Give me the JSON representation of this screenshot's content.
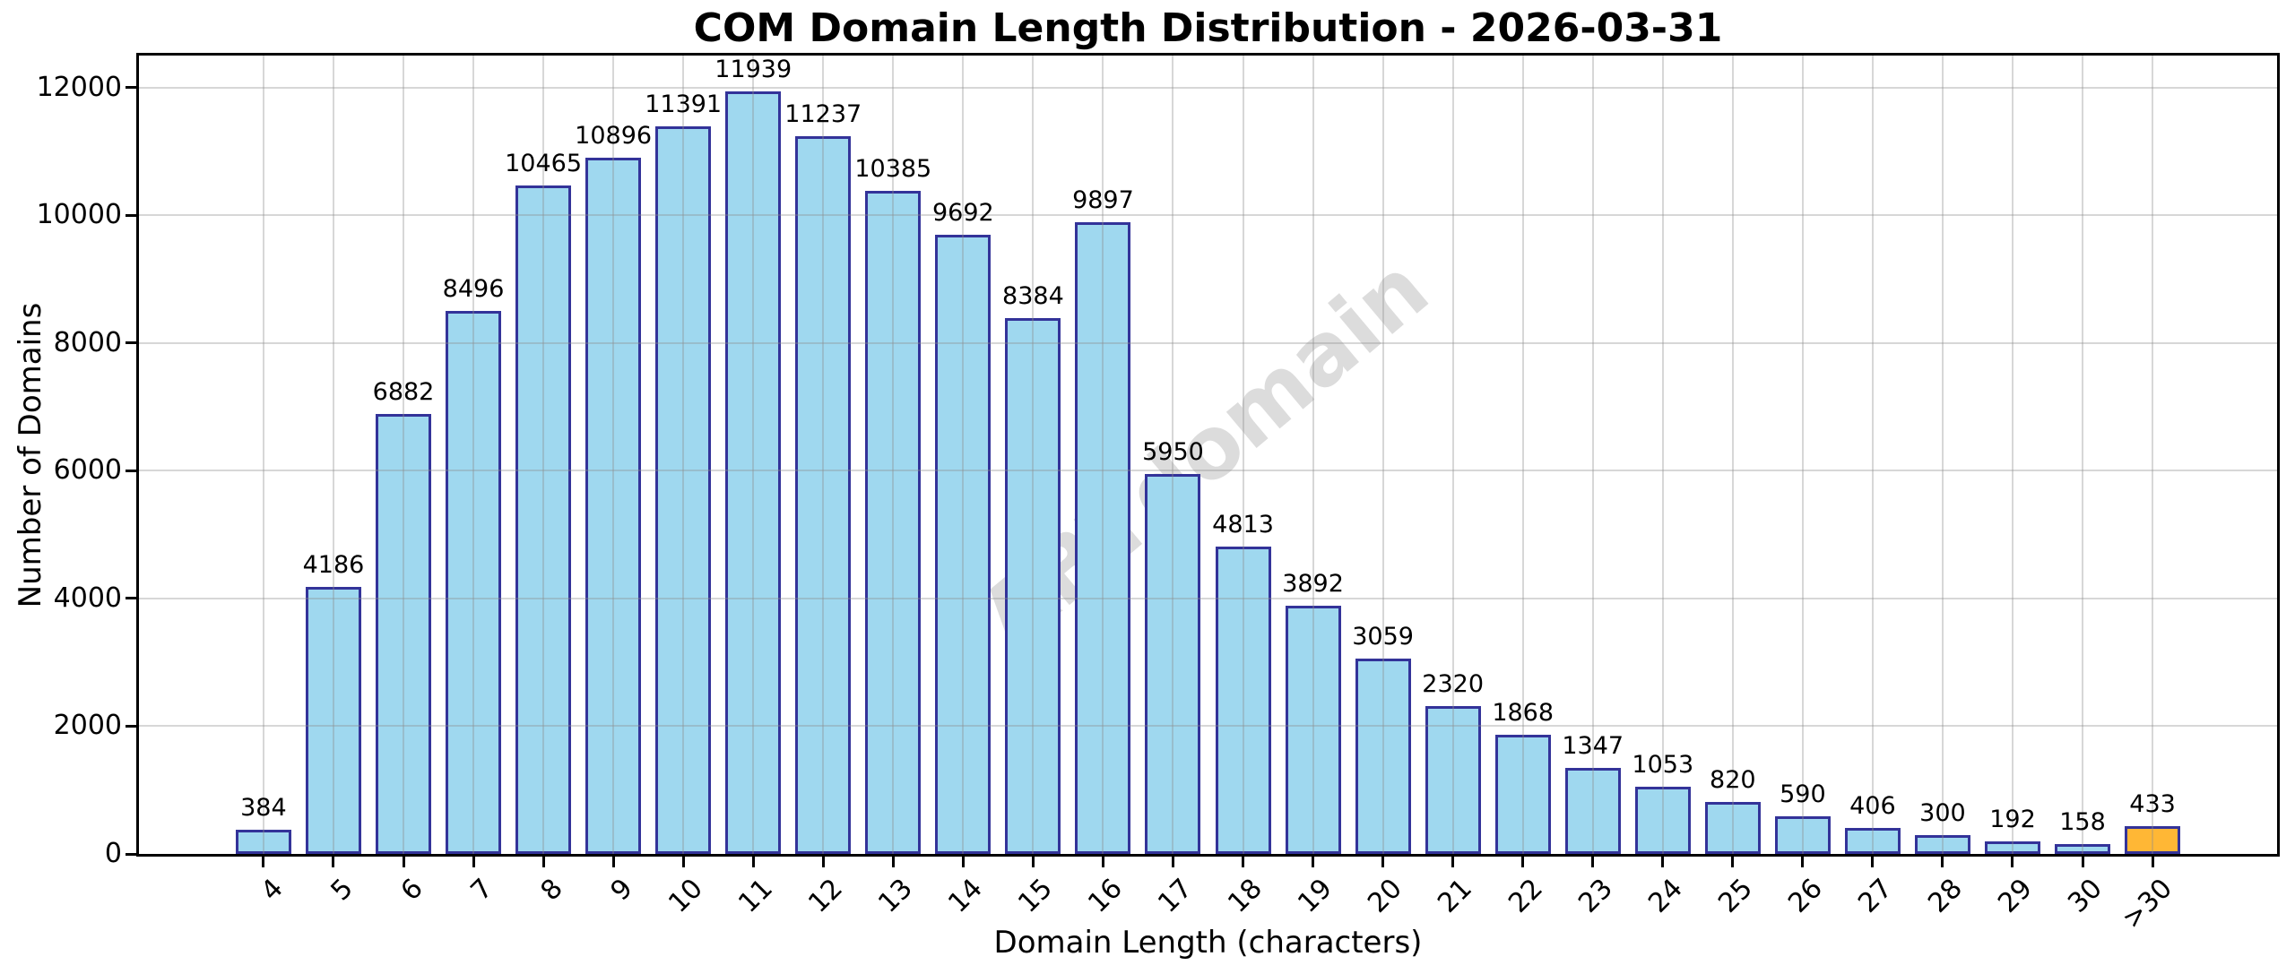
{
  "figure": {
    "background": "#FFFFFF"
  },
  "chart_data": {
    "type": "bar",
    "title": "COM Domain Length Distribution - 2026-03-31",
    "xlabel": "Domain Length (characters)",
    "ylabel": "Number of Domains",
    "categories": [
      "4",
      "5",
      "6",
      "7",
      "8",
      "9",
      "10",
      "11",
      "12",
      "13",
      "14",
      "15",
      "16",
      "17",
      "18",
      "19",
      "20",
      "21",
      "22",
      "23",
      "24",
      "25",
      "26",
      "27",
      "28",
      "29",
      "30",
      ">30"
    ],
    "values": [
      384,
      4186,
      6882,
      8496,
      10465,
      10896,
      11391,
      11939,
      11237,
      10385,
      9692,
      8384,
      9897,
      5950,
      4813,
      3892,
      3059,
      2320,
      1868,
      1347,
      1053,
      820,
      590,
      406,
      300,
      192,
      158,
      433
    ],
    "ylim": [
      0,
      12500
    ],
    "yticks": [
      0,
      2000,
      4000,
      6000,
      8000,
      10000,
      12000
    ],
    "grid": "on",
    "legend": "none",
    "xtick_rotation": 45,
    "bar_fill_color": "#9FD8EF",
    "bar_edge_color": "#333399",
    "highlight_bar_category": ">30",
    "highlight_fill_color": "#FFB735",
    "gridline_color": "rgba(140,140,140,0.35)",
    "watermark_text": "ABTdomain",
    "watermark_color": "#DCDCDC"
  }
}
